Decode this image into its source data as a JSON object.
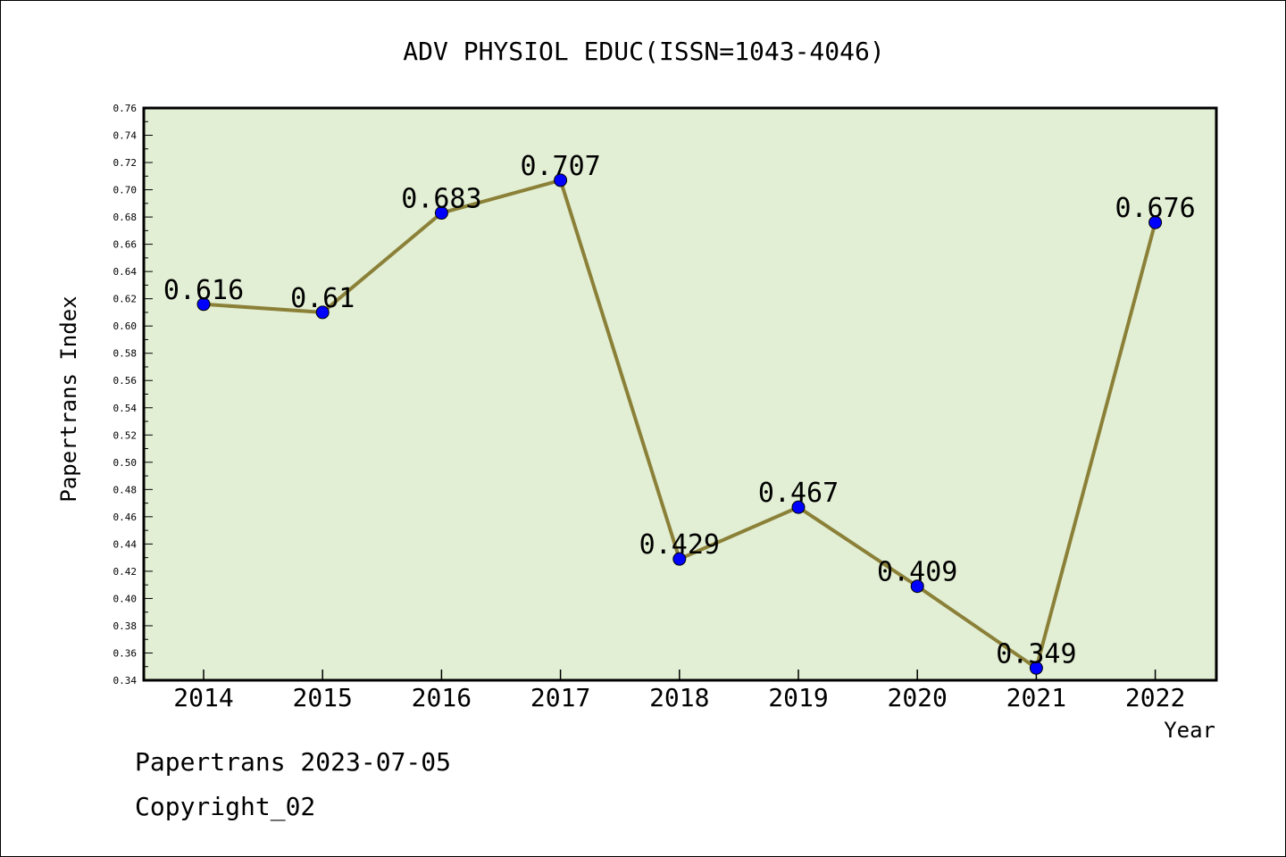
{
  "chart_data": {
    "type": "line",
    "title": "ADV PHYSIOL EDUC(ISSN=1043-4046)",
    "xlabel": "Year",
    "ylabel": "Papertrans Index",
    "categories": [
      "2014",
      "2015",
      "2016",
      "2017",
      "2018",
      "2019",
      "2020",
      "2021",
      "2022"
    ],
    "series": [
      {
        "values": [
          0.616,
          0.61,
          0.683,
          0.707,
          0.429,
          0.467,
          0.409,
          0.349,
          0.676
        ],
        "labels": [
          "0.616",
          "0.61",
          "0.683",
          "0.707",
          "0.429",
          "0.467",
          "0.409",
          "0.349",
          "0.676"
        ]
      }
    ],
    "ylim": [
      0.34,
      0.76
    ],
    "ytick_step": 0.02,
    "grid": false,
    "colors": {
      "plot_background": "#e2efd4",
      "line": "#8b8038",
      "marker": "#0000ff"
    }
  },
  "footer": {
    "date_line": "Papertrans 2023-07-05",
    "copyright_line": "Copyright_02"
  }
}
